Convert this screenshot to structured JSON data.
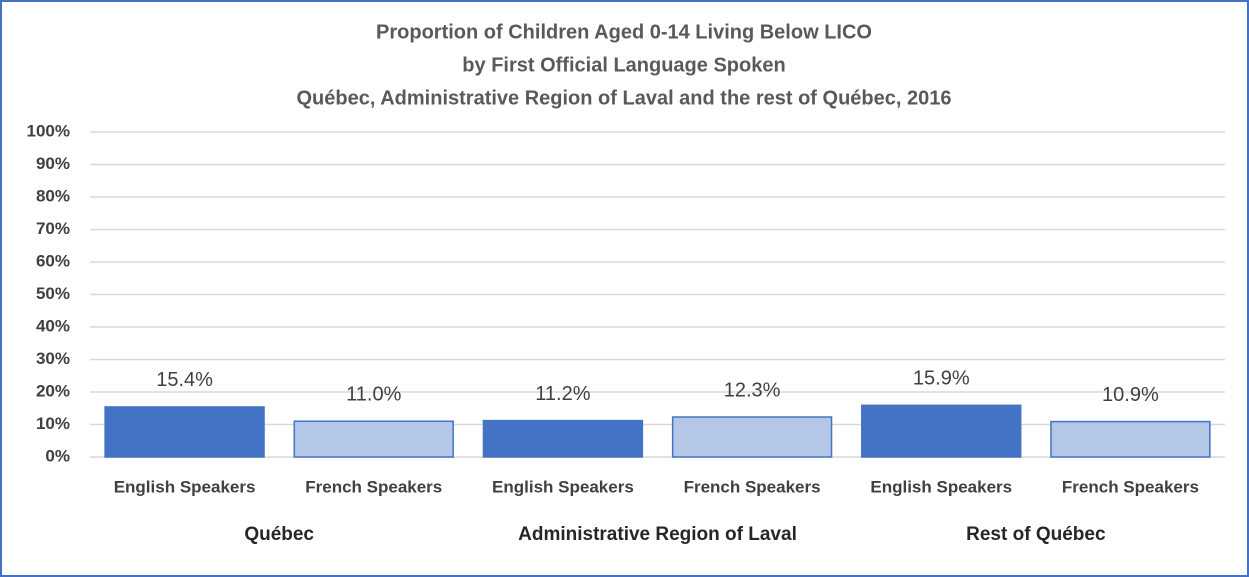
{
  "chart_data": {
    "type": "bar",
    "title": [
      "Proportion of Children Aged 0-14 Living Below LICO",
      "by First Official Language Spoken",
      "Québec, Administrative Region of Laval and the rest of Québec, 2016"
    ],
    "categories": [
      "English Speakers",
      "French Speakers",
      "English Speakers",
      "French Speakers",
      "English Speakers",
      "French Speakers"
    ],
    "groups": [
      {
        "label": "Québec",
        "span": 2
      },
      {
        "label": "Administrative Region of Laval",
        "span": 2
      },
      {
        "label": "Rest of Québec",
        "span": 2
      }
    ],
    "values": [
      15.4,
      11.0,
      11.2,
      12.3,
      15.9,
      10.9
    ],
    "value_labels": [
      "15.4%",
      "11.0%",
      "11.2%",
      "12.3%",
      "15.9%",
      "10.9%"
    ],
    "colors": [
      "#4472c4",
      "#b4c7e7",
      "#4472c4",
      "#b4c7e7",
      "#4472c4",
      "#b4c7e7"
    ],
    "ylim": [
      0,
      100
    ],
    "yticks": [
      {
        "value": 0,
        "label": "0%"
      },
      {
        "value": 10,
        "label": "10%"
      },
      {
        "value": 20,
        "label": "20%"
      },
      {
        "value": 30,
        "label": "30%"
      },
      {
        "value": 40,
        "label": "40%"
      },
      {
        "value": 50,
        "label": "50%"
      },
      {
        "value": 60,
        "label": "60%"
      },
      {
        "value": 70,
        "label": "70%"
      },
      {
        "value": 80,
        "label": "80%"
      },
      {
        "value": 90,
        "label": "90%"
      },
      {
        "value": 100,
        "label": "100%"
      }
    ],
    "grid": true
  }
}
